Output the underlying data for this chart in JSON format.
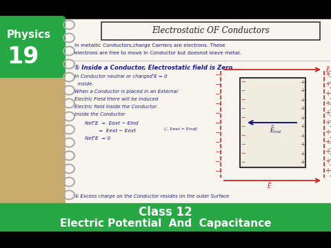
{
  "bg_black": "#000000",
  "bg_green": "#27a844",
  "bg_tan": "#c8a96e",
  "bg_notebook": "#f8f5ee",
  "text_white": "#ffffff",
  "text_dark_blue": "#1a1a7e",
  "text_red": "#cc2222",
  "title_text": "Electrostatic OF Conductors",
  "physics_label": "Physics",
  "number_label": "19",
  "class_label": "Class 12",
  "subject_label": "Electric Potential  And  Capacitance",
  "line1": "In metallic Conductors,charge Carriers are electrons. These",
  "line2": "electrons are free to move in Conductor but doesnot leave metal.",
  "point1_title": "① Inside a Conductor, Electrostatic field is Zero",
  "body1": "In Conductor neutral or charged ⃗E = 0",
  "body2": "  inside.",
  "body3": "When a Conductor is placed in an External",
  "body4": "Electric Field there will be Induced",
  "body5": "Electric field inside the Conductor.",
  "body6": "Inside the Conductor",
  "eq1": "Net ⃗E  =  Eext − Eind",
  "eq2": "         =  Eext − Eext",
  "note": "(∴ Eext = Eind)",
  "eq3": "Net ⃗E  = 0",
  "point2": "② Excess charge on the Conductor resides on the outer Surface"
}
